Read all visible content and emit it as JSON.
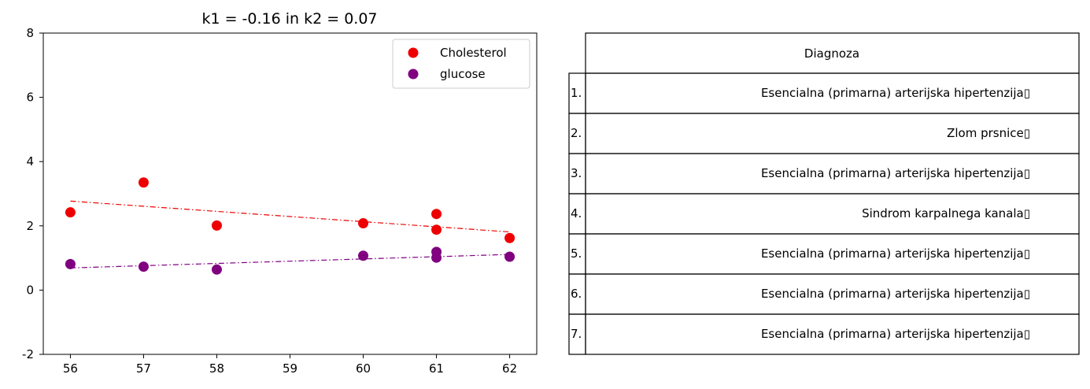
{
  "chart_data": [
    {
      "type": "scatter",
      "title": "k1 = -0.16 in k2 = 0.07",
      "xlabel": "",
      "ylabel": "",
      "x_ticks": [
        "56",
        "57",
        "58",
        "59",
        "60",
        "61",
        "62"
      ],
      "y_ticks": [
        "-2",
        "0",
        "2",
        "4",
        "6",
        "8"
      ],
      "xlim": [
        55.63,
        62.37
      ],
      "ylim": [
        -2,
        8
      ],
      "grid": false,
      "legend_position": "top-right",
      "series": [
        {
          "name": "Cholesterol",
          "color": "#ee0000",
          "points": [
            [
              56,
              2.42
            ],
            [
              57,
              3.35
            ],
            [
              58,
              2.01
            ],
            [
              60,
              2.08
            ],
            [
              61,
              2.37
            ],
            [
              61,
              1.88
            ],
            [
              62,
              1.62
            ]
          ],
          "trend": [
            [
              56,
              2.77
            ],
            [
              62,
              1.81
            ]
          ],
          "trend_style": "dashdot"
        },
        {
          "name": "glucose",
          "color": "#800080",
          "points": [
            [
              56,
              0.81
            ],
            [
              57,
              0.73
            ],
            [
              58,
              0.64
            ],
            [
              60,
              1.07
            ],
            [
              61,
              1.19
            ],
            [
              61,
              1.01
            ],
            [
              62,
              1.04
            ]
          ],
          "trend": [
            [
              56,
              0.69
            ],
            [
              62,
              1.11
            ]
          ],
          "trend_style": "dashdot"
        }
      ]
    },
    {
      "type": "table",
      "header": "Diagnoza",
      "rows": [
        {
          "index": "1.",
          "value": "Esencialna (primarna) arterijska hipertenzija▯"
        },
        {
          "index": "2.",
          "value": "Zlom prsnice▯"
        },
        {
          "index": "3.",
          "value": "Esencialna (primarna) arterijska hipertenzija▯"
        },
        {
          "index": "4.",
          "value": "Sindrom karpalnega kanala▯"
        },
        {
          "index": "5.",
          "value": "Esencialna (primarna) arterijska hipertenzija▯"
        },
        {
          "index": "6.",
          "value": "Esencialna (primarna) arterijska hipertenzija▯"
        },
        {
          "index": "7.",
          "value": "Esencialna (primarna) arterijska hipertenzija▯"
        }
      ]
    }
  ]
}
